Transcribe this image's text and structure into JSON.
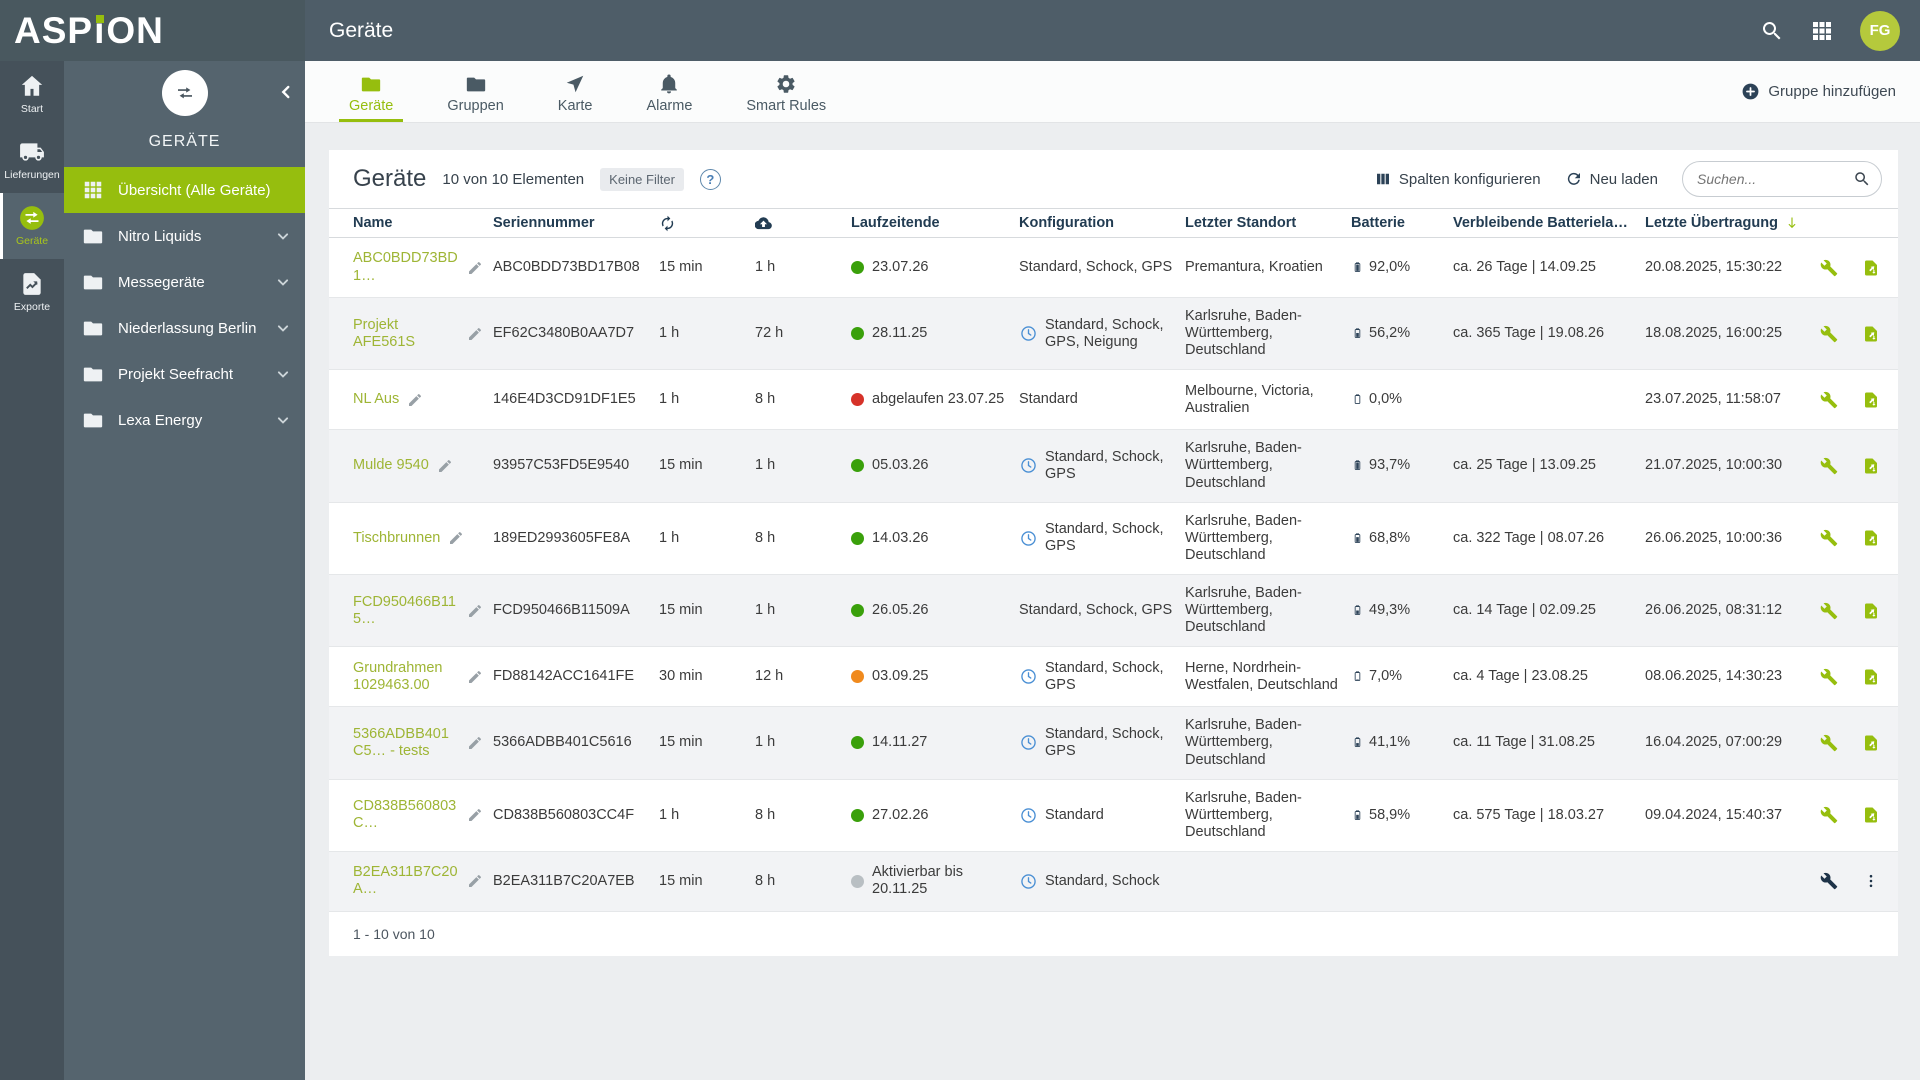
{
  "brand": {
    "logo_a": "ASP",
    "logo_i": "ı",
    "logo_b": "ON",
    "name": "ASPiON"
  },
  "header": {
    "title": "Geräte",
    "avatar_initials": "FG"
  },
  "rail": {
    "items": [
      {
        "id": "start",
        "icon": "home",
        "label": "Start",
        "active": false
      },
      {
        "id": "lieferungen",
        "icon": "truck",
        "label": "Lieferungen",
        "active": false
      },
      {
        "id": "geraete",
        "icon": "swap",
        "label": "Geräte",
        "active": true
      },
      {
        "id": "exporte",
        "icon": "export",
        "label": "Exporte",
        "active": false
      }
    ]
  },
  "sidebar": {
    "title": "GERÄTE",
    "overview_label": "Übersicht (Alle Geräte)",
    "groups": [
      "Nitro Liquids",
      "Messegeräte",
      "Niederlassung Berlin",
      "Projekt Seefracht",
      "Lexa Energy"
    ]
  },
  "tabsbar": {
    "tabs": [
      {
        "id": "geraete",
        "label": "Geräte",
        "icon": "folder",
        "active": true
      },
      {
        "id": "gruppen",
        "label": "Gruppen",
        "icon": "folder",
        "active": false
      },
      {
        "id": "karte",
        "label": "Karte",
        "icon": "nav",
        "active": false
      },
      {
        "id": "alarme",
        "label": "Alarme",
        "icon": "bell",
        "active": false
      },
      {
        "id": "smart-rules",
        "label": "Smart Rules",
        "icon": "gear",
        "active": false
      }
    ],
    "add_group": "Gruppe hinzufügen"
  },
  "toolbar": {
    "title": "Geräte",
    "count": "10 von 10 Elementen",
    "filter_chip": "Keine Filter",
    "help_glyph": "?",
    "configure": "Spalten konfigurieren",
    "reload": "Neu laden",
    "search_placeholder": "Suchen..."
  },
  "table": {
    "columns": [
      {
        "label": "Name"
      },
      {
        "label": "Seriennummer"
      },
      {
        "icon": "sync",
        "name": "sync-interval-column"
      },
      {
        "icon": "cloud",
        "name": "upload-interval-column"
      },
      {
        "label": "Laufzeitende"
      },
      {
        "label": "Konfiguration"
      },
      {
        "label": "Letzter Standort"
      },
      {
        "label": "Batterie"
      },
      {
        "label": "Verbleibende Batteriela…"
      },
      {
        "label": "Letzte Übertragung",
        "sort": "desc"
      },
      {
        "label": ""
      }
    ],
    "rows": [
      {
        "name": "ABC0BDD73BD1…",
        "serial": "ABC0BDD73BD17B08",
        "interval": "15 min",
        "upload": "1 h",
        "runtime": {
          "status": "green",
          "text": "23.07.26"
        },
        "config": {
          "clock": false,
          "text": "Standard, Schock, GPS"
        },
        "location": "Premantura, Kroatien",
        "battery": {
          "label": "92,0%",
          "level": 92
        },
        "remaining": "ca. 26 Tage | 14.09.25",
        "last": "20.08.2025, 15:30:22",
        "actions": [
          {
            "icon": "wrench",
            "color": "green"
          },
          {
            "icon": "file-export",
            "color": "green"
          }
        ]
      },
      {
        "name": "Projekt AFE561S",
        "serial": "EF62C3480B0AA7D7",
        "interval": "1 h",
        "upload": "72 h",
        "runtime": {
          "status": "green",
          "text": "28.11.25"
        },
        "config": {
          "clock": true,
          "text": "Standard, Schock, GPS, Neigung"
        },
        "location": "Karlsruhe, Baden-Württemberg, Deutschland",
        "battery": {
          "label": "56,2%",
          "level": 56
        },
        "remaining": "ca. 365 Tage | 19.08.26",
        "last": "18.08.2025, 16:00:25",
        "actions": [
          {
            "icon": "wrench",
            "color": "green"
          },
          {
            "icon": "file-export",
            "color": "green"
          }
        ]
      },
      {
        "name": "NL Aus",
        "serial": "146E4D3CD91DF1E5",
        "interval": "1 h",
        "upload": "8 h",
        "runtime": {
          "status": "red",
          "text": "abgelaufen 23.07.25"
        },
        "config": {
          "clock": false,
          "text": "Standard"
        },
        "location": "Melbourne, Victoria, Australien",
        "battery": {
          "label": "0,0%",
          "level": 0
        },
        "remaining": "",
        "last": "23.07.2025, 11:58:07",
        "actions": [
          {
            "icon": "wrench",
            "color": "green"
          },
          {
            "icon": "file-export",
            "color": "green"
          }
        ]
      },
      {
        "name": "Mulde 9540",
        "serial": "93957C53FD5E9540",
        "interval": "15 min",
        "upload": "1 h",
        "runtime": {
          "status": "green",
          "text": "05.03.26"
        },
        "config": {
          "clock": true,
          "text": "Standard, Schock, GPS"
        },
        "location": "Karlsruhe, Baden-Württemberg, Deutschland",
        "battery": {
          "label": "93,7%",
          "level": 94
        },
        "remaining": "ca. 25 Tage | 13.09.25",
        "last": "21.07.2025, 10:00:30",
        "actions": [
          {
            "icon": "wrench",
            "color": "green"
          },
          {
            "icon": "file-export",
            "color": "green"
          }
        ]
      },
      {
        "name": "Tischbrunnen",
        "serial": "189ED2993605FE8A",
        "interval": "1 h",
        "upload": "8 h",
        "runtime": {
          "status": "green",
          "text": "14.03.26"
        },
        "config": {
          "clock": true,
          "text": "Standard, Schock, GPS"
        },
        "location": "Karlsruhe, Baden-Württemberg, Deutschland",
        "battery": {
          "label": "68,8%",
          "level": 69
        },
        "remaining": "ca. 322 Tage | 08.07.26",
        "last": "26.06.2025, 10:00:36",
        "actions": [
          {
            "icon": "wrench",
            "color": "green"
          },
          {
            "icon": "file-export",
            "color": "green"
          }
        ]
      },
      {
        "name": "FCD950466B115…",
        "serial": "FCD950466B11509A",
        "interval": "15 min",
        "upload": "1 h",
        "runtime": {
          "status": "green",
          "text": "26.05.26"
        },
        "config": {
          "clock": false,
          "text": "Standard, Schock, GPS"
        },
        "location": "Karlsruhe, Baden-Württemberg, Deutschland",
        "battery": {
          "label": "49,3%",
          "level": 49
        },
        "remaining": "ca. 14 Tage | 02.09.25",
        "last": "26.06.2025, 08:31:12",
        "actions": [
          {
            "icon": "wrench",
            "color": "green"
          },
          {
            "icon": "file-export",
            "color": "green"
          }
        ]
      },
      {
        "name": "Grundrahmen 1029463.00",
        "serial": "FD88142ACC1641FE",
        "interval": "30 min",
        "upload": "12 h",
        "runtime": {
          "status": "orange",
          "text": "03.09.25"
        },
        "config": {
          "clock": true,
          "text": "Standard, Schock, GPS"
        },
        "location": "Herne, Nordrhein-Westfalen, Deutschland",
        "battery": {
          "label": "7,0%",
          "level": 7
        },
        "remaining": "ca. 4 Tage | 23.08.25",
        "last": "08.06.2025, 14:30:23",
        "actions": [
          {
            "icon": "wrench",
            "color": "green"
          },
          {
            "icon": "file-export",
            "color": "green"
          }
        ]
      },
      {
        "name": "5366ADBB401C5… - tests",
        "serial": "5366ADBB401C5616",
        "interval": "15 min",
        "upload": "1 h",
        "runtime": {
          "status": "green",
          "text": "14.11.27"
        },
        "config": {
          "clock": true,
          "text": "Standard, Schock, GPS"
        },
        "location": "Karlsruhe, Baden-Württemberg, Deutschland",
        "battery": {
          "label": "41,1%",
          "level": 41
        },
        "remaining": "ca. 11 Tage | 31.08.25",
        "last": "16.04.2025, 07:00:29",
        "actions": [
          {
            "icon": "wrench",
            "color": "green"
          },
          {
            "icon": "file-export",
            "color": "green"
          }
        ]
      },
      {
        "name": "CD838B560803C…",
        "serial": "CD838B560803CC4F",
        "interval": "1 h",
        "upload": "8 h",
        "runtime": {
          "status": "green",
          "text": "27.02.26"
        },
        "config": {
          "clock": true,
          "text": "Standard"
        },
        "location": "Karlsruhe, Baden-Württemberg, Deutschland",
        "battery": {
          "label": "58,9%",
          "level": 59
        },
        "remaining": "ca. 575 Tage | 18.03.27",
        "last": "09.04.2024, 15:40:37",
        "actions": [
          {
            "icon": "wrench",
            "color": "green"
          },
          {
            "icon": "file-export",
            "color": "green"
          }
        ]
      },
      {
        "name": "B2EA311B7C20A…",
        "serial": "B2EA311B7C20A7EB",
        "interval": "15 min",
        "upload": "8 h",
        "runtime": {
          "status": "gray",
          "text": "Aktivierbar bis 20.11.25"
        },
        "config": {
          "clock": true,
          "text": "Standard, Schock"
        },
        "location": "",
        "battery": null,
        "remaining": "",
        "last": "",
        "actions": [
          {
            "icon": "wrench",
            "color": "dark"
          },
          {
            "icon": "kebab",
            "color": "dark"
          }
        ]
      }
    ],
    "footer": "1 - 10 von 10"
  },
  "colors": {
    "accent": "#96be0e",
    "link": "#9eb535",
    "dark_icon": "#2c4257",
    "status_green": "#3aa00b",
    "status_red": "#d63229",
    "status_orange": "#f08a1d",
    "status_gray": "#b9bfc3"
  }
}
